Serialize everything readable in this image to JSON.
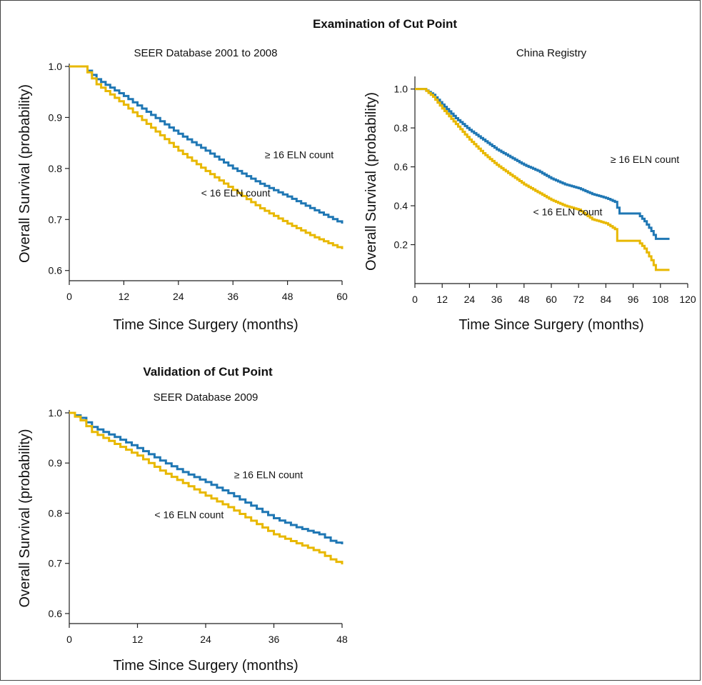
{
  "headings": {
    "examination": "Examination of Cut Point",
    "validation": "Validation of Cut Point"
  },
  "colors": {
    "high_eln": "#1f77b4",
    "low_eln": "#e8b800"
  },
  "chart_data": [
    {
      "type": "line",
      "title": "SEER Database 2001 to 2008",
      "xlabel": "Time Since Surgery (months)",
      "ylabel": "Overall Survival (probability)",
      "xlim": [
        0,
        60
      ],
      "ylim": [
        0.58,
        1.0
      ],
      "xticks": [
        0,
        12,
        24,
        36,
        48,
        60
      ],
      "yticks": [
        0.6,
        0.7,
        0.8,
        0.9,
        1.0
      ],
      "series": [
        {
          "name": "≥ 16 ELN count",
          "color": "#1f77b4",
          "points": [
            [
              0,
              1.0
            ],
            [
              3,
              1.0
            ],
            [
              6,
              0.975
            ],
            [
              12,
              0.942
            ],
            [
              18,
              0.905
            ],
            [
              24,
              0.868
            ],
            [
              30,
              0.835
            ],
            [
              36,
              0.8
            ],
            [
              42,
              0.77
            ],
            [
              48,
              0.745
            ],
            [
              54,
              0.718
            ],
            [
              60,
              0.692
            ]
          ]
        },
        {
          "name": "< 16 ELN count",
          "color": "#e8b800",
          "points": [
            [
              0,
              1.0
            ],
            [
              3,
              1.0
            ],
            [
              6,
              0.965
            ],
            [
              12,
              0.925
            ],
            [
              18,
              0.88
            ],
            [
              24,
              0.835
            ],
            [
              30,
              0.795
            ],
            [
              36,
              0.758
            ],
            [
              42,
              0.722
            ],
            [
              48,
              0.692
            ],
            [
              54,
              0.665
            ],
            [
              60,
              0.642
            ]
          ]
        }
      ],
      "annotations": [
        {
          "text": "≥ 16 ELN count",
          "x": 43,
          "y": 0.82
        },
        {
          "text": "< 16 ELN count",
          "x": 29,
          "y": 0.745
        }
      ]
    },
    {
      "type": "line",
      "title": "China Registry",
      "xlabel": "Time Since Surgery (months)",
      "ylabel": "Overall Survival (probability)",
      "xlim": [
        0,
        120
      ],
      "ylim": [
        0.0,
        1.05
      ],
      "xticks": [
        0,
        12,
        24,
        36,
        48,
        60,
        72,
        84,
        96,
        108,
        120
      ],
      "yticks": [
        0.2,
        0.4,
        0.6,
        0.8,
        1.0
      ],
      "series": [
        {
          "name": "≥ 16 ELN count",
          "color": "#1f77b4",
          "points": [
            [
              0,
              1.0
            ],
            [
              4,
              1.0
            ],
            [
              8,
              0.97
            ],
            [
              12,
              0.92
            ],
            [
              18,
              0.85
            ],
            [
              24,
              0.79
            ],
            [
              30,
              0.74
            ],
            [
              36,
              0.69
            ],
            [
              42,
              0.65
            ],
            [
              48,
              0.61
            ],
            [
              54,
              0.58
            ],
            [
              60,
              0.54
            ],
            [
              66,
              0.51
            ],
            [
              72,
              0.49
            ],
            [
              78,
              0.46
            ],
            [
              84,
              0.44
            ],
            [
              88,
              0.42
            ],
            [
              90,
              0.36
            ],
            [
              98,
              0.36
            ],
            [
              101,
              0.32
            ],
            [
              104,
              0.27
            ],
            [
              106,
              0.23
            ],
            [
              112,
              0.23
            ]
          ]
        },
        {
          "name": "< 16 ELN count",
          "color": "#e8b800",
          "points": [
            [
              0,
              1.0
            ],
            [
              4,
              1.0
            ],
            [
              8,
              0.96
            ],
            [
              12,
              0.9
            ],
            [
              18,
              0.82
            ],
            [
              24,
              0.74
            ],
            [
              30,
              0.67
            ],
            [
              36,
              0.61
            ],
            [
              42,
              0.56
            ],
            [
              48,
              0.51
            ],
            [
              54,
              0.47
            ],
            [
              60,
              0.43
            ],
            [
              66,
              0.4
            ],
            [
              72,
              0.38
            ],
            [
              78,
              0.33
            ],
            [
              84,
              0.31
            ],
            [
              88,
              0.28
            ],
            [
              89,
              0.22
            ],
            [
              98,
              0.22
            ],
            [
              101,
              0.18
            ],
            [
              104,
              0.12
            ],
            [
              106,
              0.07
            ],
            [
              112,
              0.07
            ]
          ]
        }
      ],
      "annotations": [
        {
          "text": "≥ 16 ELN count",
          "x": 86,
          "y": 0.62
        },
        {
          "text": "< 16 ELN count",
          "x": 52,
          "y": 0.35
        }
      ]
    },
    {
      "type": "line",
      "title": "SEER Database 2009",
      "xlabel": "Time Since Surgery (months)",
      "ylabel": "Overall Survival (probability)",
      "xlim": [
        0,
        48
      ],
      "ylim": [
        0.58,
        1.0
      ],
      "xticks": [
        0,
        12,
        24,
        36,
        48
      ],
      "yticks": [
        0.6,
        0.7,
        0.8,
        0.9,
        1.0
      ],
      "series": [
        {
          "name": "≥ 16 ELN count",
          "color": "#1f77b4",
          "points": [
            [
              0,
              1.0
            ],
            [
              2,
              0.99
            ],
            [
              4,
              0.972
            ],
            [
              8,
              0.952
            ],
            [
              12,
              0.93
            ],
            [
              16,
              0.905
            ],
            [
              20,
              0.882
            ],
            [
              24,
              0.862
            ],
            [
              28,
              0.84
            ],
            [
              32,
              0.815
            ],
            [
              36,
              0.79
            ],
            [
              40,
              0.772
            ],
            [
              44,
              0.758
            ],
            [
              46,
              0.745
            ],
            [
              48,
              0.738
            ]
          ]
        },
        {
          "name": "< 16 ELN count",
          "color": "#e8b800",
          "points": [
            [
              0,
              1.0
            ],
            [
              2,
              0.985
            ],
            [
              4,
              0.962
            ],
            [
              8,
              0.938
            ],
            [
              12,
              0.915
            ],
            [
              16,
              0.885
            ],
            [
              20,
              0.86
            ],
            [
              24,
              0.835
            ],
            [
              28,
              0.812
            ],
            [
              32,
              0.785
            ],
            [
              36,
              0.758
            ],
            [
              40,
              0.74
            ],
            [
              44,
              0.722
            ],
            [
              46,
              0.708
            ],
            [
              48,
              0.698
            ]
          ]
        }
      ],
      "annotations": [
        {
          "text": "≥ 16 ELN count",
          "x": 29,
          "y": 0.87
        },
        {
          "text": "< 16 ELN count",
          "x": 15,
          "y": 0.79
        }
      ]
    }
  ]
}
